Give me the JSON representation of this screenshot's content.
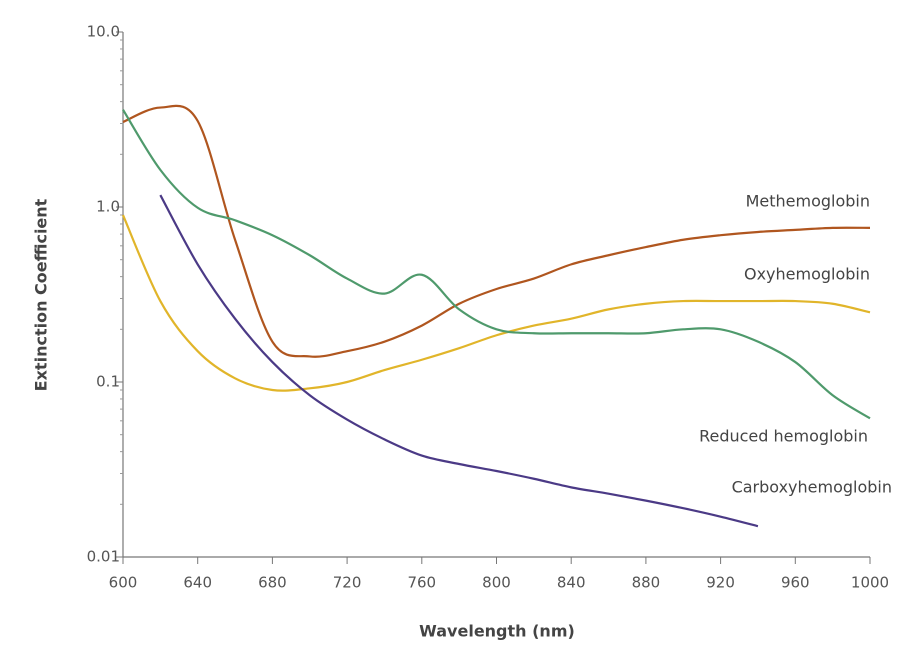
{
  "chart_data": {
    "type": "line",
    "x_label": "Wavelength (nm)",
    "y_label": "Extinction Coefficient",
    "log_y": true,
    "xlim": [
      600,
      1000
    ],
    "xticks": [
      600,
      640,
      680,
      720,
      760,
      800,
      840,
      880,
      920,
      960,
      1000
    ],
    "ylim": [
      0.01,
      10
    ],
    "yticks": [
      {
        "value": 10,
        "label": "10.0"
      },
      {
        "value": 1,
        "label": "1.0"
      },
      0.1,
      0.01
    ],
    "x": [
      600,
      620,
      640,
      660,
      680,
      700,
      720,
      740,
      760,
      780,
      800,
      820,
      840,
      860,
      880,
      900,
      920,
      940,
      960,
      980,
      1000
    ],
    "series": [
      {
        "name": "Methemoglobin",
        "color": "#b0561f",
        "values": [
          3.06,
          3.7,
          3.1,
          0.65,
          0.17,
          0.14,
          0.15,
          0.17,
          0.21,
          0.28,
          0.34,
          0.39,
          0.47,
          0.53,
          0.59,
          0.65,
          0.69,
          0.72,
          0.74,
          0.76,
          0.76
        ]
      },
      {
        "name": "Oxyhemoglobin",
        "color": "#e1b52a",
        "values": [
          0.9,
          0.29,
          0.15,
          0.105,
          0.09,
          0.092,
          0.1,
          0.117,
          0.134,
          0.156,
          0.185,
          0.21,
          0.23,
          0.26,
          0.28,
          0.29,
          0.29,
          0.29,
          0.29,
          0.28,
          0.25
        ]
      },
      {
        "name": "Reduced hemoglobin",
        "color": "#4f9a6c",
        "values": [
          3.6,
          1.63,
          0.99,
          0.84,
          0.69,
          0.53,
          0.39,
          0.32,
          0.41,
          0.26,
          0.2,
          0.19,
          0.19,
          0.19,
          0.19,
          0.2,
          0.2,
          0.17,
          0.13,
          0.084,
          0.062
        ]
      },
      {
        "name": "Carboxyhemoglobin",
        "color": "#4b3a86",
        "values": [
          null,
          1.17,
          0.47,
          0.23,
          0.13,
          0.084,
          0.061,
          0.047,
          0.038,
          0.034,
          0.031,
          0.028,
          0.025,
          0.023,
          0.021,
          0.019,
          0.017,
          0.015,
          null,
          null,
          null
        ]
      }
    ]
  }
}
